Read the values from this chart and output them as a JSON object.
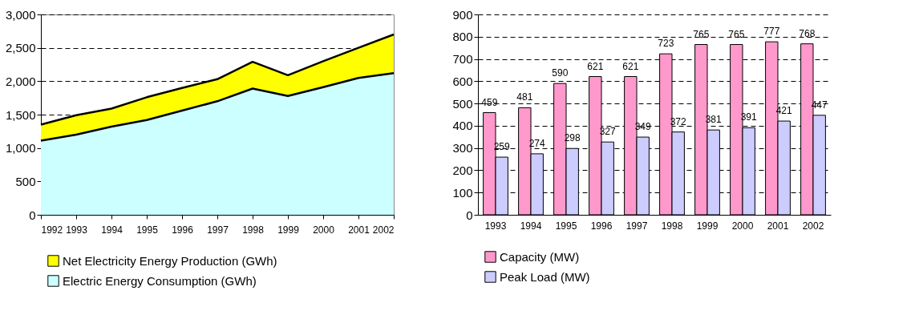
{
  "chart_data": [
    {
      "type": "area",
      "categories": [
        "1992",
        "1993",
        "1994",
        "1995",
        "1996",
        "1997",
        "1998",
        "1999",
        "2000",
        "2001",
        "2002"
      ],
      "series": [
        {
          "name": "Net Electricity Energy Production (GWh)",
          "color": "#ffff00",
          "values": [
            1350,
            1490,
            1590,
            1760,
            1900,
            2030,
            2290,
            2090,
            2300,
            2500,
            2700
          ]
        },
        {
          "name": "Electric Energy Consumption (GWh)",
          "color": "#ccffff",
          "values": [
            1110,
            1200,
            1320,
            1420,
            1560,
            1700,
            1890,
            1780,
            1910,
            2050,
            2120
          ]
        }
      ],
      "ylim": [
        0,
        3000
      ],
      "yticks": [
        0,
        500,
        {
          "value": 1000,
          "label": "1,000"
        },
        {
          "value": 1500,
          "label": "1,500"
        },
        {
          "value": 2000,
          "label": "2,000"
        },
        {
          "value": 2500,
          "label": "2,500"
        },
        {
          "value": 3000,
          "label": "3,000"
        }
      ],
      "grid": "y",
      "line_style": "dashed",
      "legend": "bottom"
    },
    {
      "type": "bar",
      "categories": [
        "1993",
        "1994",
        "1995",
        "1996",
        "1997",
        "1998",
        "1999",
        "2000",
        "2001",
        "2002"
      ],
      "series": [
        {
          "name": "Capacity (MW)",
          "color": "#ff99cc",
          "values": [
            459,
            481,
            590,
            621,
            621,
            723,
            765,
            765,
            777,
            768
          ]
        },
        {
          "name": "Peak Load (MW)",
          "color": "#ccccff",
          "values": [
            259,
            274,
            298,
            327,
            349,
            372,
            381,
            391,
            421,
            447
          ]
        }
      ],
      "ylim": [
        0,
        900
      ],
      "yticks": [
        0,
        100,
        200,
        300,
        400,
        500,
        600,
        700,
        800,
        900
      ],
      "grid": "y",
      "line_style": "dashed",
      "data_labels": true,
      "legend": "bottom"
    }
  ]
}
